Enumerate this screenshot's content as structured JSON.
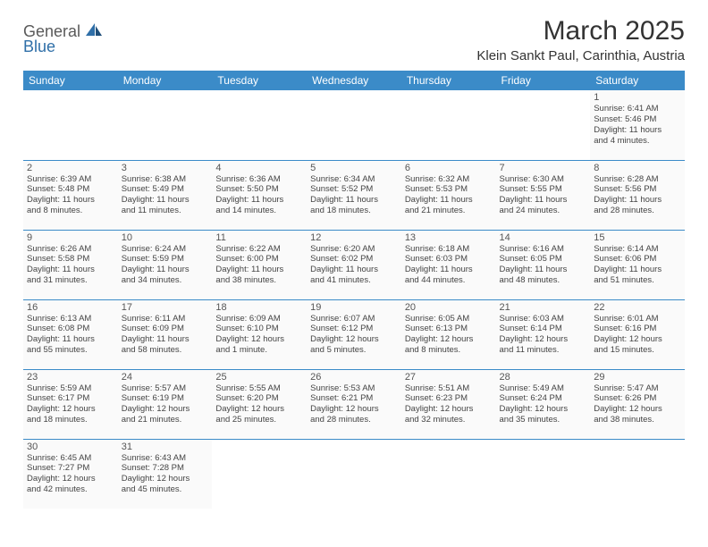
{
  "logo": {
    "general": "General",
    "blue": "Blue"
  },
  "title": "March 2025",
  "location": "Klein Sankt Paul, Carinthia, Austria",
  "colors": {
    "header_bg": "#3b8bc8",
    "header_fg": "#ffffff",
    "border": "#3b8bc8",
    "text": "#333333",
    "cell_bg": "#fafafa"
  },
  "weekdays": [
    "Sunday",
    "Monday",
    "Tuesday",
    "Wednesday",
    "Thursday",
    "Friday",
    "Saturday"
  ],
  "weeks": [
    [
      null,
      null,
      null,
      null,
      null,
      null,
      {
        "n": "1",
        "sr": "Sunrise: 6:41 AM",
        "ss": "Sunset: 5:46 PM",
        "dl1": "Daylight: 11 hours",
        "dl2": "and 4 minutes."
      }
    ],
    [
      {
        "n": "2",
        "sr": "Sunrise: 6:39 AM",
        "ss": "Sunset: 5:48 PM",
        "dl1": "Daylight: 11 hours",
        "dl2": "and 8 minutes."
      },
      {
        "n": "3",
        "sr": "Sunrise: 6:38 AM",
        "ss": "Sunset: 5:49 PM",
        "dl1": "Daylight: 11 hours",
        "dl2": "and 11 minutes."
      },
      {
        "n": "4",
        "sr": "Sunrise: 6:36 AM",
        "ss": "Sunset: 5:50 PM",
        "dl1": "Daylight: 11 hours",
        "dl2": "and 14 minutes."
      },
      {
        "n": "5",
        "sr": "Sunrise: 6:34 AM",
        "ss": "Sunset: 5:52 PM",
        "dl1": "Daylight: 11 hours",
        "dl2": "and 18 minutes."
      },
      {
        "n": "6",
        "sr": "Sunrise: 6:32 AM",
        "ss": "Sunset: 5:53 PM",
        "dl1": "Daylight: 11 hours",
        "dl2": "and 21 minutes."
      },
      {
        "n": "7",
        "sr": "Sunrise: 6:30 AM",
        "ss": "Sunset: 5:55 PM",
        "dl1": "Daylight: 11 hours",
        "dl2": "and 24 minutes."
      },
      {
        "n": "8",
        "sr": "Sunrise: 6:28 AM",
        "ss": "Sunset: 5:56 PM",
        "dl1": "Daylight: 11 hours",
        "dl2": "and 28 minutes."
      }
    ],
    [
      {
        "n": "9",
        "sr": "Sunrise: 6:26 AM",
        "ss": "Sunset: 5:58 PM",
        "dl1": "Daylight: 11 hours",
        "dl2": "and 31 minutes."
      },
      {
        "n": "10",
        "sr": "Sunrise: 6:24 AM",
        "ss": "Sunset: 5:59 PM",
        "dl1": "Daylight: 11 hours",
        "dl2": "and 34 minutes."
      },
      {
        "n": "11",
        "sr": "Sunrise: 6:22 AM",
        "ss": "Sunset: 6:00 PM",
        "dl1": "Daylight: 11 hours",
        "dl2": "and 38 minutes."
      },
      {
        "n": "12",
        "sr": "Sunrise: 6:20 AM",
        "ss": "Sunset: 6:02 PM",
        "dl1": "Daylight: 11 hours",
        "dl2": "and 41 minutes."
      },
      {
        "n": "13",
        "sr": "Sunrise: 6:18 AM",
        "ss": "Sunset: 6:03 PM",
        "dl1": "Daylight: 11 hours",
        "dl2": "and 44 minutes."
      },
      {
        "n": "14",
        "sr": "Sunrise: 6:16 AM",
        "ss": "Sunset: 6:05 PM",
        "dl1": "Daylight: 11 hours",
        "dl2": "and 48 minutes."
      },
      {
        "n": "15",
        "sr": "Sunrise: 6:14 AM",
        "ss": "Sunset: 6:06 PM",
        "dl1": "Daylight: 11 hours",
        "dl2": "and 51 minutes."
      }
    ],
    [
      {
        "n": "16",
        "sr": "Sunrise: 6:13 AM",
        "ss": "Sunset: 6:08 PM",
        "dl1": "Daylight: 11 hours",
        "dl2": "and 55 minutes."
      },
      {
        "n": "17",
        "sr": "Sunrise: 6:11 AM",
        "ss": "Sunset: 6:09 PM",
        "dl1": "Daylight: 11 hours",
        "dl2": "and 58 minutes."
      },
      {
        "n": "18",
        "sr": "Sunrise: 6:09 AM",
        "ss": "Sunset: 6:10 PM",
        "dl1": "Daylight: 12 hours",
        "dl2": "and 1 minute."
      },
      {
        "n": "19",
        "sr": "Sunrise: 6:07 AM",
        "ss": "Sunset: 6:12 PM",
        "dl1": "Daylight: 12 hours",
        "dl2": "and 5 minutes."
      },
      {
        "n": "20",
        "sr": "Sunrise: 6:05 AM",
        "ss": "Sunset: 6:13 PM",
        "dl1": "Daylight: 12 hours",
        "dl2": "and 8 minutes."
      },
      {
        "n": "21",
        "sr": "Sunrise: 6:03 AM",
        "ss": "Sunset: 6:14 PM",
        "dl1": "Daylight: 12 hours",
        "dl2": "and 11 minutes."
      },
      {
        "n": "22",
        "sr": "Sunrise: 6:01 AM",
        "ss": "Sunset: 6:16 PM",
        "dl1": "Daylight: 12 hours",
        "dl2": "and 15 minutes."
      }
    ],
    [
      {
        "n": "23",
        "sr": "Sunrise: 5:59 AM",
        "ss": "Sunset: 6:17 PM",
        "dl1": "Daylight: 12 hours",
        "dl2": "and 18 minutes."
      },
      {
        "n": "24",
        "sr": "Sunrise: 5:57 AM",
        "ss": "Sunset: 6:19 PM",
        "dl1": "Daylight: 12 hours",
        "dl2": "and 21 minutes."
      },
      {
        "n": "25",
        "sr": "Sunrise: 5:55 AM",
        "ss": "Sunset: 6:20 PM",
        "dl1": "Daylight: 12 hours",
        "dl2": "and 25 minutes."
      },
      {
        "n": "26",
        "sr": "Sunrise: 5:53 AM",
        "ss": "Sunset: 6:21 PM",
        "dl1": "Daylight: 12 hours",
        "dl2": "and 28 minutes."
      },
      {
        "n": "27",
        "sr": "Sunrise: 5:51 AM",
        "ss": "Sunset: 6:23 PM",
        "dl1": "Daylight: 12 hours",
        "dl2": "and 32 minutes."
      },
      {
        "n": "28",
        "sr": "Sunrise: 5:49 AM",
        "ss": "Sunset: 6:24 PM",
        "dl1": "Daylight: 12 hours",
        "dl2": "and 35 minutes."
      },
      {
        "n": "29",
        "sr": "Sunrise: 5:47 AM",
        "ss": "Sunset: 6:26 PM",
        "dl1": "Daylight: 12 hours",
        "dl2": "and 38 minutes."
      }
    ],
    [
      {
        "n": "30",
        "sr": "Sunrise: 6:45 AM",
        "ss": "Sunset: 7:27 PM",
        "dl1": "Daylight: 12 hours",
        "dl2": "and 42 minutes."
      },
      {
        "n": "31",
        "sr": "Sunrise: 6:43 AM",
        "ss": "Sunset: 7:28 PM",
        "dl1": "Daylight: 12 hours",
        "dl2": "and 45 minutes."
      },
      null,
      null,
      null,
      null,
      null
    ]
  ]
}
